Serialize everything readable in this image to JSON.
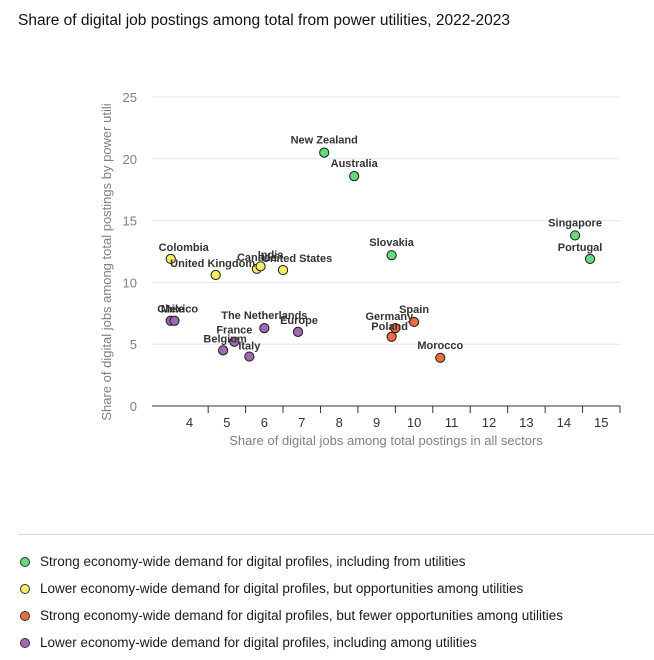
{
  "title": "Share of digital job postings among total from power utilities, 2022-2023",
  "chart_data": {
    "type": "scatter",
    "xlabel": "Share of digital jobs among total postings in all sectors",
    "ylabel": "Share of digital jobs among total postings by power utili",
    "xlim": [
      3,
      15.5
    ],
    "ylim": [
      0,
      25
    ],
    "xticks": [
      4,
      5,
      6,
      7,
      8,
      9,
      10,
      11,
      12,
      13,
      14,
      15
    ],
    "yticks": [
      0,
      5,
      10,
      15,
      20,
      25
    ],
    "grid": "horizontal",
    "legend_position": "bottom",
    "groups": [
      {
        "label": "Strong economy-wide demand for digital profiles, including from utilities",
        "color": "#5fdc7c"
      },
      {
        "label": "Lower economy-wide demand for digital profiles, but opportunities among utilities",
        "color": "#f7ec60"
      },
      {
        "label": "Strong economy-wide demand for digital profiles, but fewer opportunities among utilities",
        "color": "#f06a3c"
      },
      {
        "label": "Lower economy-wide demand for digital profiles, including among utilities",
        "color": "#a067b6"
      }
    ],
    "points": [
      {
        "label": "New Zealand",
        "x": 7.6,
        "y": 20.5,
        "group": 0
      },
      {
        "label": "Australia",
        "x": 8.4,
        "y": 18.6,
        "group": 0
      },
      {
        "label": "Singapore",
        "x": 14.3,
        "y": 13.8,
        "group": 0
      },
      {
        "label": "Portugal",
        "x": 14.7,
        "y": 11.9,
        "group": 0
      },
      {
        "label": "Slovakia",
        "x": 9.4,
        "y": 12.2,
        "group": 0
      },
      {
        "label": "Colombia",
        "x": 3.5,
        "y": 11.9,
        "group": 1
      },
      {
        "label": "United Kingdom",
        "x": 4.7,
        "y": 10.6,
        "group": 1
      },
      {
        "label": "Canada",
        "x": 5.8,
        "y": 11.1,
        "group": 1
      },
      {
        "label": "United States",
        "x": 6.5,
        "y": 11.0,
        "group": 1
      },
      {
        "label": "India",
        "x": 5.9,
        "y": 11.3,
        "group": 1
      },
      {
        "label": "Germany",
        "x": 9.5,
        "y": 6.3,
        "group": 2
      },
      {
        "label": "Spain",
        "x": 10.0,
        "y": 6.8,
        "group": 2
      },
      {
        "label": "Poland",
        "x": 9.4,
        "y": 5.6,
        "group": 2
      },
      {
        "label": "Morocco",
        "x": 10.7,
        "y": 3.9,
        "group": 2
      },
      {
        "label": "Chile",
        "x": 3.5,
        "y": 6.9,
        "group": 3
      },
      {
        "label": "Mexico",
        "x": 3.6,
        "y": 6.9,
        "group": 3
      },
      {
        "label": "The Netherlands",
        "x": 6.0,
        "y": 6.3,
        "group": 3
      },
      {
        "label": "Europe",
        "x": 6.9,
        "y": 6.0,
        "group": 3
      },
      {
        "label": "France",
        "x": 5.2,
        "y": 5.2,
        "group": 3
      },
      {
        "label": "Belgium",
        "x": 4.9,
        "y": 4.5,
        "group": 3
      },
      {
        "label": "Italy",
        "x": 5.6,
        "y": 4.0,
        "group": 3
      }
    ]
  }
}
